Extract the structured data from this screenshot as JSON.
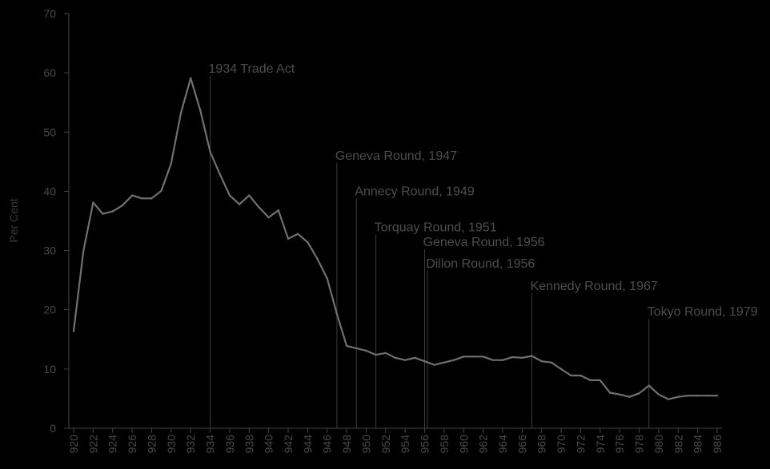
{
  "chart_data": {
    "type": "line",
    "title": "",
    "xlabel": "",
    "ylabel": "Per Cent",
    "xlim": [
      1920,
      1986
    ],
    "ylim": [
      0,
      70
    ],
    "yticks": [
      0,
      10,
      20,
      30,
      40,
      50,
      60,
      70
    ],
    "xtick_labels": [
      "920",
      "922",
      "924",
      "926",
      "928",
      "930",
      "932",
      "934",
      "936",
      "938",
      "940",
      "942",
      "944",
      "946",
      "948",
      "950",
      "952",
      "954",
      "956",
      "958",
      "960",
      "962",
      "964",
      "966",
      "968",
      "970",
      "972",
      "974",
      "976",
      "978",
      "980",
      "982",
      "984",
      "986"
    ],
    "grid": false,
    "colors": {
      "background": "#000000",
      "line": "#707070",
      "axis": "#444444",
      "marker_line": "#3c3c3c"
    },
    "series": [
      {
        "x": [
          1920,
          1921,
          1922,
          1923,
          1924,
          1925,
          1926,
          1927,
          1928,
          1929,
          1930,
          1931,
          1932,
          1933,
          1934,
          1935,
          1936,
          1937,
          1938,
          1939,
          1940,
          1941,
          1942,
          1943,
          1944,
          1945,
          1946,
          1947,
          1948,
          1949,
          1950,
          1951,
          1952,
          1953,
          1954,
          1955,
          1956,
          1957,
          1958,
          1959,
          1960,
          1961,
          1962,
          1963,
          1964,
          1965,
          1966,
          1967,
          1968,
          1969,
          1970,
          1971,
          1972,
          1973,
          1974,
          1975,
          1976,
          1977,
          1978,
          1979,
          1980,
          1981,
          1982,
          1983,
          1984,
          1985,
          1986
        ],
        "values": [
          16.4,
          29.9,
          38.1,
          36.2,
          36.6,
          37.6,
          39.3,
          38.8,
          38.8,
          40.1,
          44.7,
          53.2,
          59.1,
          53.6,
          46.7,
          42.9,
          39.3,
          37.8,
          39.3,
          37.3,
          35.6,
          36.8,
          32.0,
          32.8,
          31.4,
          28.6,
          25.3,
          19.3,
          13.9,
          13.5,
          13.1,
          12.4,
          12.7,
          11.9,
          11.5,
          11.9,
          11.3,
          10.7,
          11.1,
          11.5,
          12.1,
          12.1,
          12.1,
          11.5,
          11.5,
          12.0,
          11.9,
          12.2,
          11.3,
          11.1,
          10.0,
          8.9,
          8.9,
          8.1,
          8.1,
          6.0,
          5.7,
          5.3,
          5.9,
          7.2,
          5.7,
          4.9,
          5.3,
          5.5,
          5.5,
          5.5,
          5.5
        ]
      }
    ],
    "annotations": [
      {
        "x": 1934,
        "top": 59.5,
        "label": "1934 Trade Act"
      },
      {
        "x": 1947,
        "top": 44.8,
        "label": "Geneva Round, 1947"
      },
      {
        "x": 1949,
        "top": 38.8,
        "label": "Annecy Round, 1949"
      },
      {
        "x": 1951,
        "top": 32.7,
        "label": "Torquay Round, 1951"
      },
      {
        "x": 1956,
        "top": 30.2,
        "label": "Geneva Round, 1956"
      },
      {
        "x": 1956.3,
        "top": 26.6,
        "label": "Dillon Round, 1956"
      },
      {
        "x": 1967,
        "top": 22.8,
        "label": "Kennedy Round, 1967"
      },
      {
        "x": 1979,
        "top": 18.5,
        "label": "Tokyo Round, 1979"
      }
    ]
  }
}
